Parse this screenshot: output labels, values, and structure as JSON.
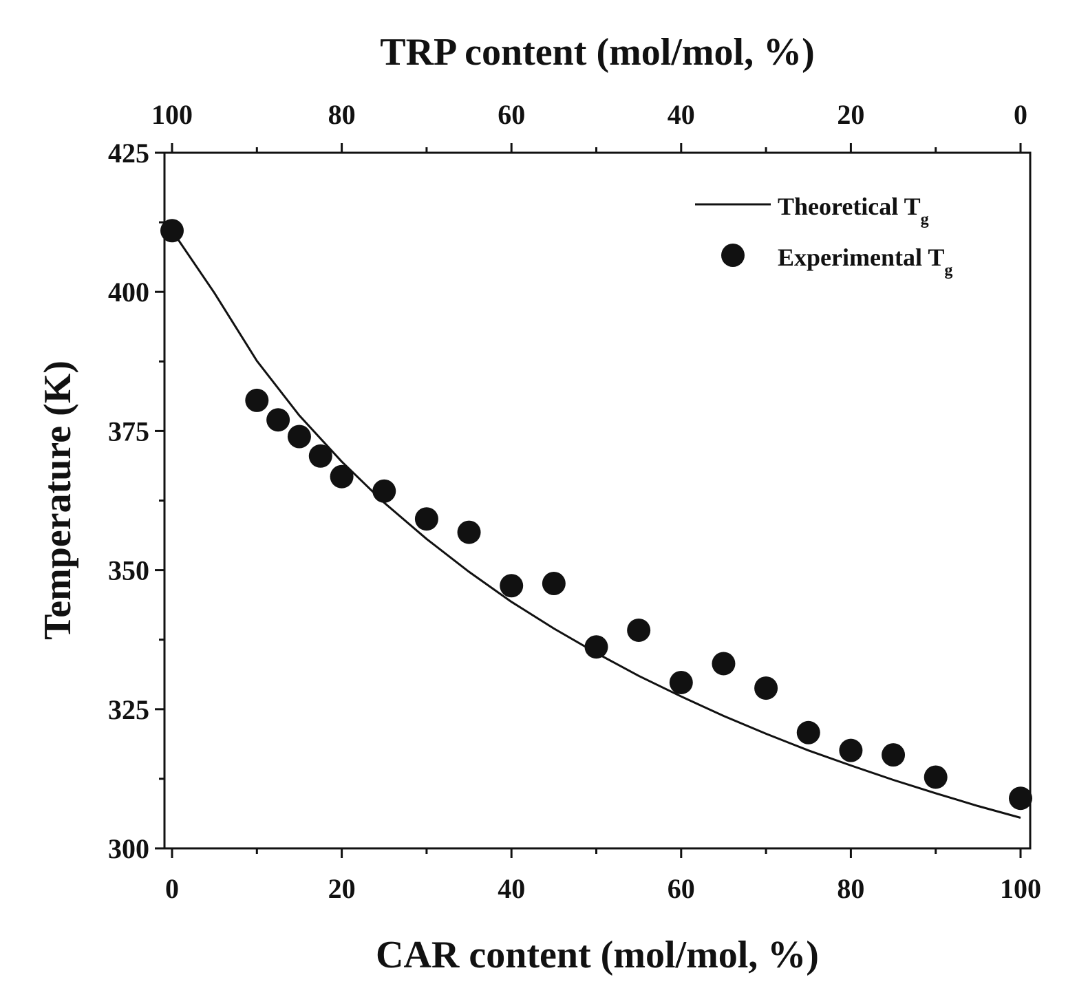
{
  "chart_data": {
    "type": "scatter",
    "top_axis": {
      "label": "TRP content (mol/mol, %)",
      "ticks": [
        100,
        80,
        60,
        40,
        20,
        0
      ],
      "range": [
        100,
        0
      ]
    },
    "xlabel": "CAR content (mol/mol, %)",
    "ylabel": "Temperature (K)",
    "xlim": [
      0,
      100
    ],
    "ylim": [
      300,
      425
    ],
    "xticks": [
      0,
      20,
      40,
      60,
      80,
      100
    ],
    "yticks": [
      300,
      325,
      350,
      375,
      400,
      425
    ],
    "grid": false,
    "legend_position": "top-right",
    "series": [
      {
        "name": "Theoretical T",
        "subscript": "g",
        "kind": "line",
        "x": [
          0,
          5,
          10,
          15,
          20,
          25,
          30,
          35,
          40,
          45,
          50,
          55,
          60,
          65,
          70,
          75,
          80,
          85,
          90,
          95,
          100
        ],
        "values": [
          411.0,
          399.8,
          387.6,
          377.8,
          369.5,
          362.1,
          355.6,
          349.7,
          344.3,
          339.5,
          335.1,
          331.0,
          327.3,
          323.8,
          320.6,
          317.6,
          314.9,
          312.3,
          309.9,
          307.6,
          305.5
        ]
      },
      {
        "name": "Experimental T",
        "subscript": "g",
        "kind": "points",
        "x": [
          0,
          10,
          12.5,
          15,
          17.5,
          20,
          25,
          30,
          35,
          40,
          45,
          50,
          55,
          60,
          65,
          70,
          75,
          80,
          85,
          90,
          100
        ],
        "values": [
          411.0,
          380.5,
          377.0,
          374.0,
          370.5,
          366.8,
          364.2,
          359.2,
          356.8,
          347.2,
          347.6,
          336.2,
          339.2,
          329.8,
          333.2,
          328.8,
          320.8,
          317.6,
          316.8,
          312.8,
          309.0
        ]
      }
    ]
  }
}
